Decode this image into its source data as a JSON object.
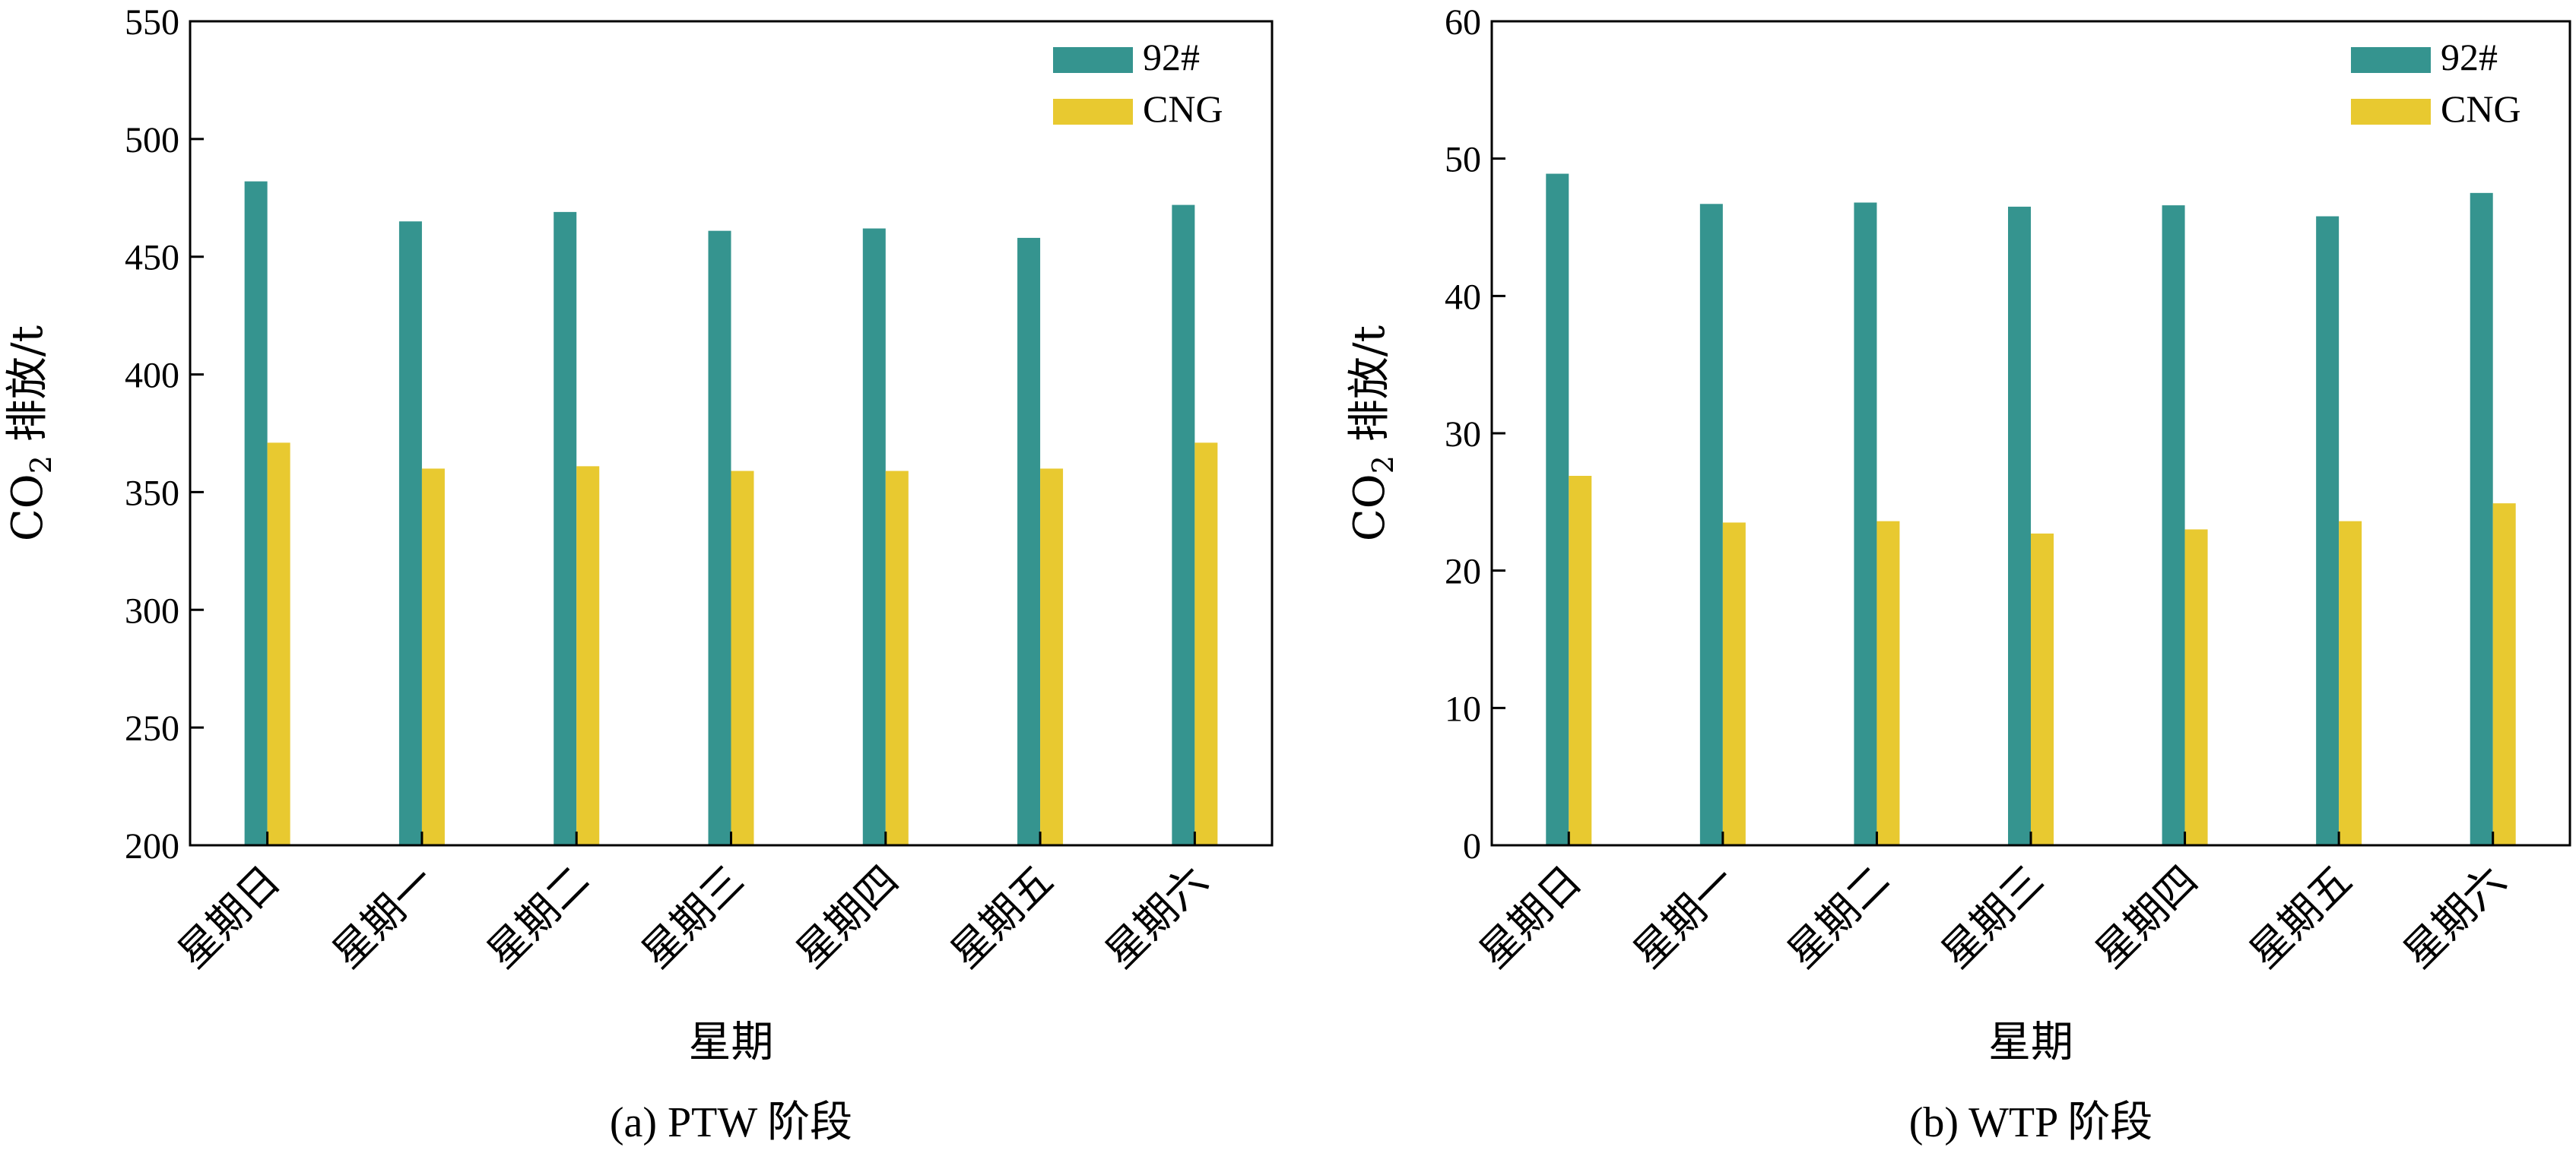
{
  "chart_data": [
    {
      "type": "bar",
      "categories": [
        "星期日",
        "星期一",
        "星期二",
        "星期三",
        "星期四",
        "星期五",
        "星期六"
      ],
      "series": [
        {
          "name": "92#",
          "values": [
            482,
            465,
            469,
            461,
            462,
            458,
            472
          ],
          "color": "#35948f"
        },
        {
          "name": "CNG",
          "values": [
            371,
            360,
            361,
            359,
            359,
            360,
            371
          ],
          "color": "#e8c930"
        }
      ],
      "title": "",
      "caption": "(a) PTW 阶段",
      "xlabel": "星期",
      "ylabel": "CO₂ 排放/t",
      "ylabel_parts": {
        "pre": "CO",
        "sub": "2",
        "post": " 排放/t"
      },
      "ylim": [
        200,
        550
      ],
      "yticks": [
        200,
        250,
        300,
        350,
        400,
        450,
        500,
        550
      ],
      "grid": false,
      "legend_position": "top-right"
    },
    {
      "type": "bar",
      "categories": [
        "星期日",
        "星期一",
        "星期二",
        "星期三",
        "星期四",
        "星期五",
        "星期六"
      ],
      "series": [
        {
          "name": "92#",
          "values": [
            48.9,
            46.7,
            46.8,
            46.5,
            46.6,
            45.8,
            47.5
          ],
          "color": "#35948f"
        },
        {
          "name": "CNG",
          "values": [
            26.9,
            23.5,
            23.6,
            22.7,
            23.0,
            23.6,
            24.9
          ],
          "color": "#e8c930"
        }
      ],
      "title": "",
      "caption": "(b) WTP 阶段",
      "xlabel": "星期",
      "ylabel": "CO₂ 排放/t",
      "ylabel_parts": {
        "pre": "CO",
        "sub": "2",
        "post": " 排放/t"
      },
      "ylim": [
        0,
        60
      ],
      "yticks": [
        0,
        10,
        20,
        30,
        40,
        50,
        60
      ],
      "grid": false,
      "legend_position": "top-right"
    }
  ]
}
